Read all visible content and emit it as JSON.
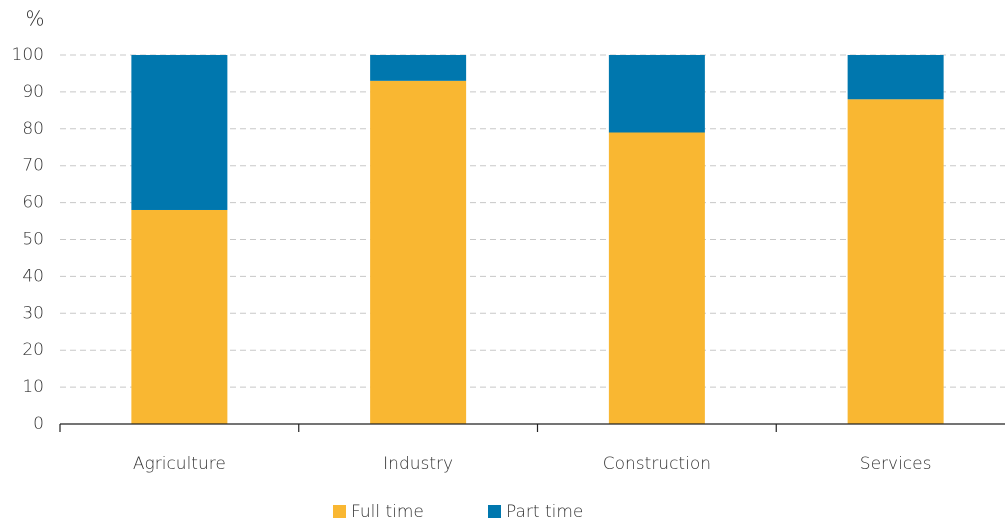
{
  "chart_data": {
    "type": "stacked_bar",
    "y_label": "%",
    "categories": [
      "Agriculture",
      "Industry",
      "Construction",
      "Services"
    ],
    "series": [
      {
        "name": "Full time",
        "color": "#f9b732",
        "values": [
          58,
          93,
          79,
          88
        ]
      },
      {
        "name": "Part time",
        "color": "#0077ae",
        "values": [
          42,
          7,
          21,
          12
        ]
      }
    ],
    "ylim": [
      0,
      100
    ],
    "yticks": [
      0,
      10,
      20,
      30,
      40,
      50,
      60,
      70,
      80,
      90,
      100
    ],
    "grid": true,
    "legend": "bottom"
  }
}
